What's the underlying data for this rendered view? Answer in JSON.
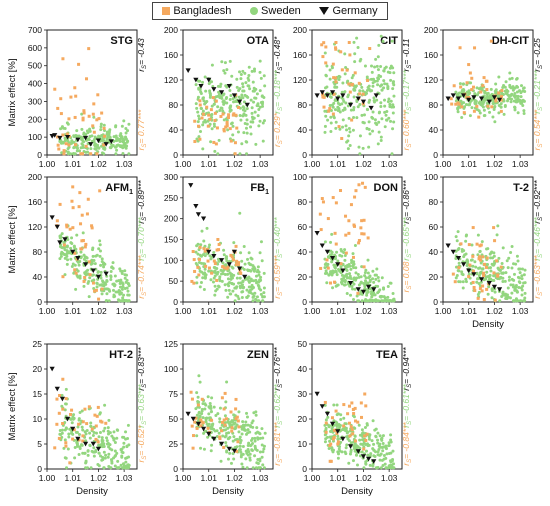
{
  "legend": {
    "items": [
      {
        "name": "Bangladesh",
        "color": "#F5A95F",
        "marker": "square"
      },
      {
        "name": "Sweden",
        "color": "#93D67F",
        "marker": "circle"
      },
      {
        "name": "Germany",
        "color": "#111111",
        "marker": "triangle-down"
      }
    ]
  },
  "axis_labels": {
    "ylabel": "Matrix effect [%]",
    "xlabel": "Density"
  },
  "chart_data": [
    {
      "type": "scatter",
      "title": "STG",
      "title_sub": "",
      "xlim": [
        1.0,
        1.035
      ],
      "ylim": [
        0,
        700
      ],
      "yticks": [
        0,
        100,
        200,
        300,
        400,
        500,
        600,
        700
      ],
      "xticks": [
        1.0,
        1.01,
        1.02,
        1.03
      ],
      "show_xlabel": false,
      "show_ylabel": true,
      "rs_germany": "r_S= -0.43",
      "rs_bangladesh": "r_S= 0.77***",
      "series": {
        "bangladesh": {
          "center": 160,
          "spread": 120,
          "max": 640,
          "n": 45
        },
        "sweden": {
          "center": 80,
          "spread": 45,
          "n": 220
        },
        "germany": [
          [
            1.002,
            105
          ],
          [
            1.005,
            95
          ],
          [
            1.008,
            100
          ],
          [
            1.012,
            85
          ],
          [
            1.015,
            95
          ],
          [
            1.02,
            80
          ],
          [
            1.023,
            60
          ],
          [
            1.025,
            75
          ],
          [
            1.017,
            60
          ],
          [
            1.003,
            110
          ]
        ]
      }
    },
    {
      "type": "scatter",
      "title": "OTA",
      "title_sub": "",
      "xlim": [
        1.0,
        1.035
      ],
      "ylim": [
        0,
        200
      ],
      "yticks": [
        0,
        40,
        80,
        120,
        160,
        200
      ],
      "xticks": [
        1.0,
        1.01,
        1.02,
        1.03
      ],
      "show_xlabel": false,
      "show_ylabel": false,
      "rs_germany": "r_S= -0.48*",
      "rs_sweden": "r_S= -0.18***",
      "rs_bangladesh": "r_S= 0.29*",
      "series": {
        "bangladesh": {
          "center": 55,
          "spread": 20,
          "max": 100,
          "n": 40
        },
        "sweden": {
          "center": 80,
          "spread": 30,
          "n": 260
        },
        "germany": [
          [
            1.002,
            135
          ],
          [
            1.005,
            120
          ],
          [
            1.007,
            110
          ],
          [
            1.01,
            120
          ],
          [
            1.012,
            105
          ],
          [
            1.015,
            100
          ],
          [
            1.018,
            110
          ],
          [
            1.02,
            95
          ],
          [
            1.022,
            85
          ],
          [
            1.025,
            80
          ]
        ]
      }
    },
    {
      "type": "scatter",
      "title": "CIT",
      "title_sub": "",
      "xlim": [
        1.0,
        1.035
      ],
      "ylim": [
        0,
        200
      ],
      "yticks": [
        0,
        40,
        80,
        120,
        160,
        200
      ],
      "xticks": [
        1.0,
        1.01,
        1.02,
        1.03
      ],
      "show_xlabel": false,
      "show_ylabel": false,
      "rs_germany": "r_S= -0.11",
      "rs_sweden": "r_S= -0.17***",
      "rs_bangladesh": "r_S= 0.60***",
      "series": {
        "bangladesh": {
          "center": 120,
          "spread": 40,
          "max": 180,
          "n": 40
        },
        "sweden": {
          "center": 95,
          "spread": 40,
          "n": 260
        },
        "germany": [
          [
            1.002,
            95
          ],
          [
            1.004,
            100
          ],
          [
            1.006,
            95
          ],
          [
            1.008,
            100
          ],
          [
            1.01,
            90
          ],
          [
            1.012,
            95
          ],
          [
            1.015,
            80
          ],
          [
            1.018,
            90
          ],
          [
            1.02,
            85
          ],
          [
            1.023,
            75
          ],
          [
            1.025,
            95
          ]
        ]
      }
    },
    {
      "type": "scatter",
      "title": "DH-CIT",
      "title_sub": "",
      "xlim": [
        1.0,
        1.035
      ],
      "ylim": [
        0,
        200
      ],
      "yticks": [
        0,
        40,
        80,
        120,
        160,
        200
      ],
      "xticks": [
        1.0,
        1.01,
        1.02,
        1.03
      ],
      "show_xlabel": false,
      "show_ylabel": false,
      "rs_germany": "r_S= -0.25",
      "rs_sweden": "r_S= -0.21***",
      "rs_bangladesh": "r_S= 0.54***",
      "series": {
        "bangladesh": {
          "center": 95,
          "spread": 20,
          "max": 185,
          "n": 40
        },
        "sweden": {
          "center": 90,
          "spread": 12,
          "n": 260
        },
        "germany": [
          [
            1.002,
            90
          ],
          [
            1.004,
            95
          ],
          [
            1.006,
            90
          ],
          [
            1.008,
            95
          ],
          [
            1.01,
            88
          ],
          [
            1.012,
            92
          ],
          [
            1.015,
            90
          ],
          [
            1.018,
            85
          ],
          [
            1.02,
            92
          ],
          [
            1.022,
            88
          ]
        ]
      }
    },
    {
      "type": "scatter",
      "title": "AFM",
      "title_sub": "1",
      "xlim": [
        1.0,
        1.035
      ],
      "ylim": [
        0,
        200
      ],
      "yticks": [
        0,
        40,
        80,
        120,
        160,
        200
      ],
      "xticks": [
        1.0,
        1.01,
        1.02,
        1.03
      ],
      "show_xlabel": false,
      "show_ylabel": true,
      "rs_germany": "r_S= -0.89***",
      "rs_sweden": "r_S= -0.70***",
      "rs_bangladesh": "r_S= -0.74***",
      "series": {
        "bangladesh": {
          "center": 100,
          "spread": 40,
          "max": 185,
          "n": 40,
          "trend": -4500
        },
        "sweden": {
          "center": 60,
          "spread": 20,
          "n": 260,
          "trend": -3000
        },
        "germany": [
          [
            1.002,
            135
          ],
          [
            1.004,
            120
          ],
          [
            1.005,
            95
          ],
          [
            1.007,
            100
          ],
          [
            1.01,
            80
          ],
          [
            1.012,
            70
          ],
          [
            1.015,
            60
          ],
          [
            1.018,
            50
          ],
          [
            1.02,
            40
          ],
          [
            1.023,
            45
          ]
        ]
      }
    },
    {
      "type": "scatter",
      "title": "FB",
      "title_sub": "1",
      "xlim": [
        1.0,
        1.035
      ],
      "ylim": [
        0,
        300
      ],
      "yticks": [
        0,
        50,
        100,
        150,
        200,
        250,
        300
      ],
      "xticks": [
        1.0,
        1.01,
        1.02,
        1.03
      ],
      "show_xlabel": false,
      "show_ylabel": false,
      "rs_germany": "",
      "rs_sweden": "r_S= -0.40***",
      "rs_bangladesh": "r_S= -0.59***",
      "series": {
        "bangladesh": {
          "center": 100,
          "spread": 30,
          "max": 150,
          "n": 40
        },
        "sweden": {
          "center": 75,
          "spread": 30,
          "n": 260,
          "trend": -2500
        },
        "germany": [
          [
            1.003,
            280
          ],
          [
            1.005,
            230
          ],
          [
            1.006,
            210
          ],
          [
            1.008,
            200
          ],
          [
            1.01,
            120
          ],
          [
            1.012,
            110
          ],
          [
            1.015,
            100
          ],
          [
            1.018,
            90
          ],
          [
            1.02,
            120
          ],
          [
            1.022,
            80
          ],
          [
            1.024,
            60
          ]
        ]
      }
    },
    {
      "type": "scatter",
      "title": "DON",
      "title_sub": "",
      "xlim": [
        1.0,
        1.035
      ],
      "ylim": [
        0,
        100
      ],
      "yticks": [
        0,
        20,
        40,
        60,
        80,
        100
      ],
      "xticks": [
        1.0,
        1.01,
        1.02,
        1.03
      ],
      "show_xlabel": false,
      "show_ylabel": false,
      "rs_germany": "r_S= -0.86***",
      "rs_sweden": "r_S= -0.65***",
      "rs_bangladesh": "r_S= 0.08",
      "series": {
        "bangladesh": {
          "center": 60,
          "spread": 20,
          "max": 95,
          "n": 40
        },
        "sweden": {
          "center": 20,
          "spread": 10,
          "n": 260,
          "trend": -1500
        },
        "germany": [
          [
            1.002,
            55
          ],
          [
            1.004,
            45
          ],
          [
            1.006,
            40
          ],
          [
            1.008,
            35
          ],
          [
            1.01,
            30
          ],
          [
            1.012,
            25
          ],
          [
            1.015,
            15
          ],
          [
            1.018,
            10
          ],
          [
            1.02,
            8
          ],
          [
            1.022,
            12
          ],
          [
            1.024,
            10
          ]
        ]
      }
    },
    {
      "type": "scatter",
      "title": "T-2",
      "title_sub": "",
      "xlim": [
        1.0,
        1.035
      ],
      "ylim": [
        0,
        100
      ],
      "yticks": [
        0,
        20,
        40,
        60,
        80,
        100
      ],
      "xticks": [
        1.0,
        1.01,
        1.02,
        1.03
      ],
      "show_xlabel": true,
      "show_ylabel": false,
      "rs_germany": "r_S= -0.92***",
      "rs_sweden": "r_S= -0.46***",
      "rs_bangladesh": "r_S= -0.63***",
      "series": {
        "bangladesh": {
          "center": 28,
          "spread": 12,
          "max": 60,
          "n": 40
        },
        "sweden": {
          "center": 25,
          "spread": 12,
          "n": 260,
          "trend": -800
        },
        "germany": [
          [
            1.002,
            45
          ],
          [
            1.004,
            40
          ],
          [
            1.006,
            35
          ],
          [
            1.008,
            30
          ],
          [
            1.01,
            25
          ],
          [
            1.012,
            22
          ],
          [
            1.015,
            18
          ],
          [
            1.018,
            15
          ],
          [
            1.02,
            12
          ],
          [
            1.022,
            10
          ]
        ]
      }
    },
    {
      "type": "scatter",
      "title": "HT-2",
      "title_sub": "",
      "xlim": [
        1.0,
        1.035
      ],
      "ylim": [
        0,
        25
      ],
      "yticks": [
        0,
        5,
        10,
        15,
        20,
        25
      ],
      "xticks": [
        1.0,
        1.01,
        1.02,
        1.03
      ],
      "show_xlabel": true,
      "show_ylabel": true,
      "rs_germany": "r_S= -0.83***",
      "rs_sweden": "r_S= -0.63***",
      "rs_bangladesh": "r_S= -0.52*",
      "series": {
        "bangladesh": {
          "center": 9,
          "spread": 4,
          "max": 18,
          "n": 35
        },
        "sweden": {
          "center": 6,
          "spread": 3,
          "n": 230,
          "trend": -250
        },
        "germany": [
          [
            1.002,
            20
          ],
          [
            1.004,
            16
          ],
          [
            1.006,
            14
          ],
          [
            1.008,
            10
          ],
          [
            1.01,
            8
          ],
          [
            1.012,
            6
          ],
          [
            1.015,
            5
          ],
          [
            1.018,
            5
          ],
          [
            1.02,
            4
          ]
        ]
      }
    },
    {
      "type": "scatter",
      "title": "ZEN",
      "title_sub": "",
      "xlim": [
        1.0,
        1.035
      ],
      "ylim": [
        0,
        125
      ],
      "yticks": [
        0,
        25,
        50,
        75,
        100,
        125
      ],
      "xticks": [
        1.0,
        1.01,
        1.02,
        1.03
      ],
      "show_xlabel": true,
      "show_ylabel": false,
      "rs_germany": "r_S= -0.76***",
      "rs_sweden": "r_S= -0.62***",
      "rs_bangladesh": "r_S= -0.81***",
      "series": {
        "bangladesh": {
          "center": 45,
          "spread": 15,
          "max": 80,
          "n": 40
        },
        "sweden": {
          "center": 40,
          "spread": 15,
          "n": 260,
          "trend": -1500
        },
        "germany": [
          [
            1.002,
            55
          ],
          [
            1.004,
            50
          ],
          [
            1.006,
            45
          ],
          [
            1.008,
            40
          ],
          [
            1.01,
            35
          ],
          [
            1.012,
            30
          ],
          [
            1.015,
            25
          ],
          [
            1.018,
            20
          ],
          [
            1.02,
            18
          ]
        ]
      }
    },
    {
      "type": "scatter",
      "title": "TEA",
      "title_sub": "",
      "xlim": [
        1.0,
        1.035
      ],
      "ylim": [
        0,
        50
      ],
      "yticks": [
        0,
        10,
        20,
        30,
        40,
        50
      ],
      "xticks": [
        1.0,
        1.01,
        1.02,
        1.03
      ],
      "show_xlabel": true,
      "show_ylabel": false,
      "rs_germany": "r_S= -0.94***",
      "rs_sweden": "r_S= -0.61***",
      "rs_bangladesh": "r_S= -0.84***",
      "series": {
        "bangladesh": {
          "center": 15,
          "spread": 6,
          "max": 30,
          "n": 40
        },
        "sweden": {
          "center": 12,
          "spread": 5,
          "n": 260,
          "trend": -500
        },
        "germany": [
          [
            1.002,
            30
          ],
          [
            1.004,
            25
          ],
          [
            1.006,
            22
          ],
          [
            1.008,
            18
          ],
          [
            1.01,
            15
          ],
          [
            1.012,
            12
          ],
          [
            1.015,
            9
          ],
          [
            1.018,
            7
          ],
          [
            1.02,
            5
          ],
          [
            1.022,
            4
          ],
          [
            1.024,
            3
          ]
        ]
      }
    }
  ]
}
